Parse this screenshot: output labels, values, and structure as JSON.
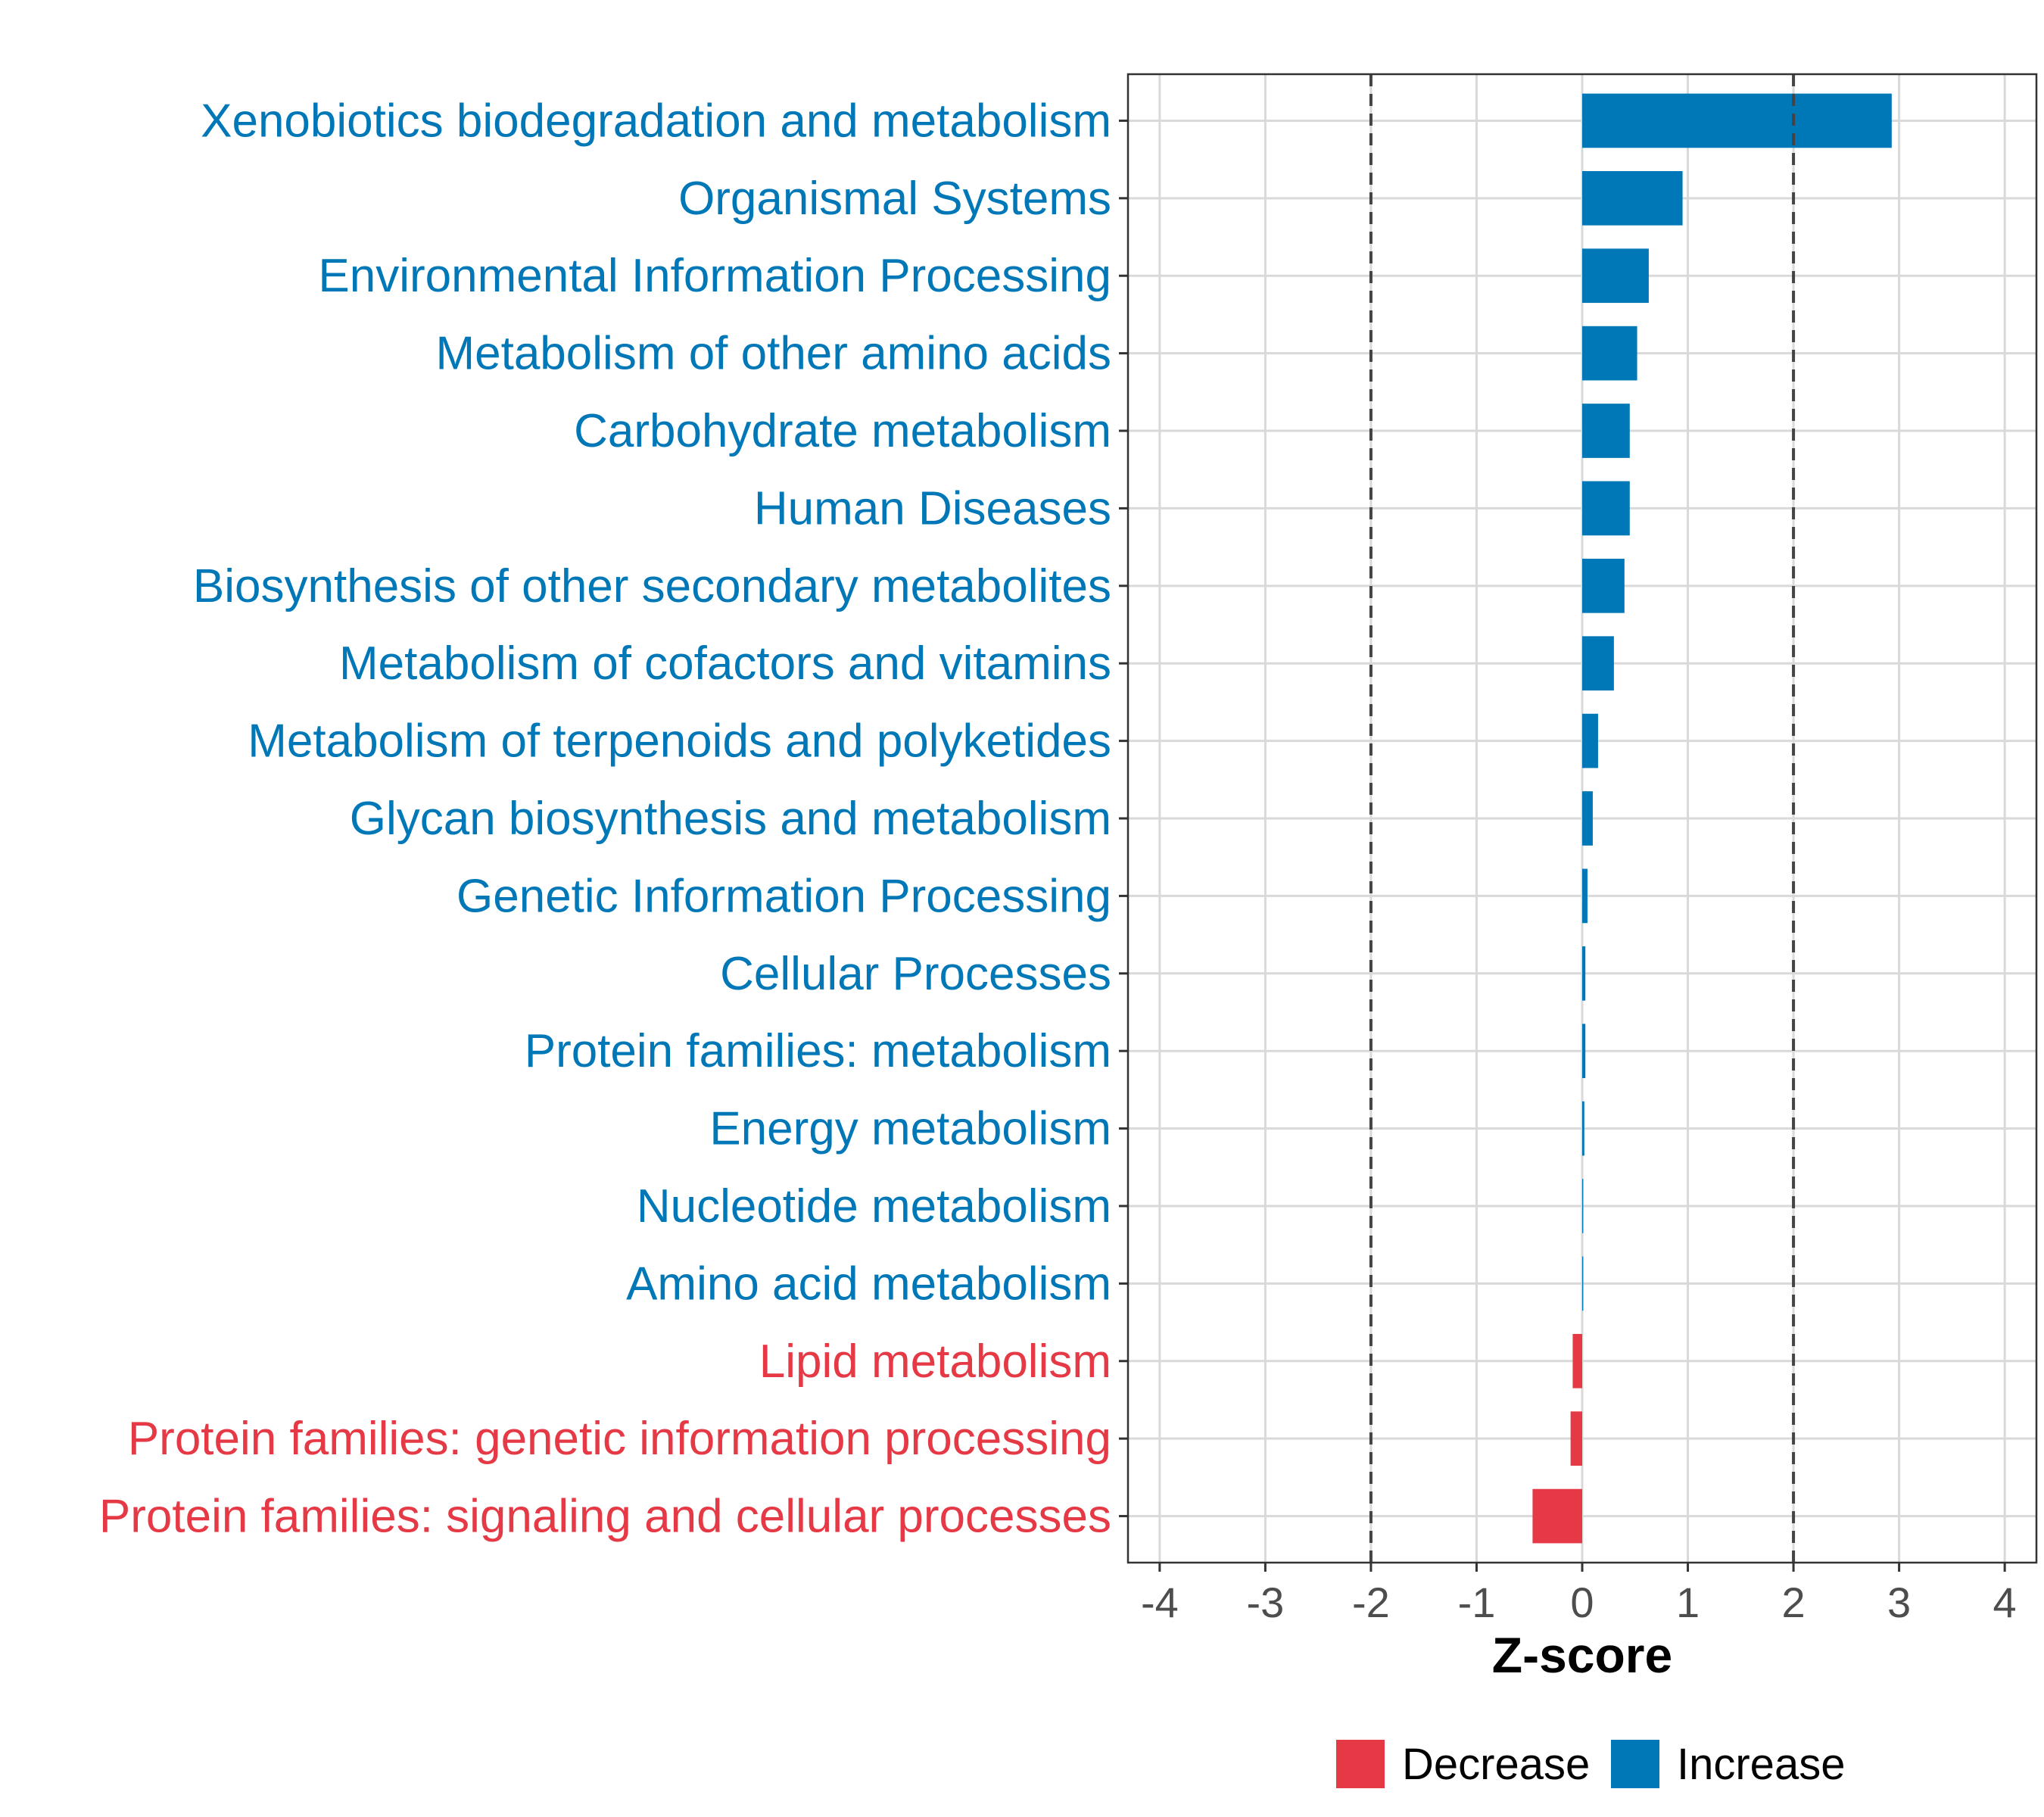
{
  "chart_data": {
    "type": "bar",
    "orientation": "horizontal",
    "categories": [
      "Xenobiotics biodegradation and metabolism",
      "Organismal Systems",
      "Environmental Information Processing",
      "Metabolism of other amino acids",
      "Carbohydrate metabolism",
      "Human Diseases",
      "Biosynthesis of other secondary metabolites",
      "Metabolism of cofactors and vitamins",
      "Metabolism of terpenoids and polyketides",
      "Glycan biosynthesis and metabolism",
      "Genetic Information Processing",
      "Cellular Processes",
      "Protein families: metabolism",
      "Energy metabolism",
      "Nucleotide metabolism",
      "Amino acid metabolism",
      "Lipid metabolism",
      "Protein families: genetic information processing",
      "Protein families: signaling and cellular processes"
    ],
    "values": [
      2.93,
      0.95,
      0.63,
      0.52,
      0.45,
      0.45,
      0.4,
      0.3,
      0.15,
      0.1,
      0.05,
      0.03,
      0.03,
      0.02,
      0.01,
      0.01,
      -0.09,
      -0.11,
      -0.47
    ],
    "groups": [
      "Increase",
      "Increase",
      "Increase",
      "Increase",
      "Increase",
      "Increase",
      "Increase",
      "Increase",
      "Increase",
      "Increase",
      "Increase",
      "Increase",
      "Increase",
      "Increase",
      "Increase",
      "Increase",
      "Decrease",
      "Decrease",
      "Decrease"
    ],
    "xlabel": "Z-score",
    "ylabel": "",
    "xlim": [
      -4.3,
      4.3
    ],
    "xticks": [
      -4,
      -3,
      -2,
      -1,
      0,
      1,
      2,
      3,
      4
    ],
    "xtick_labels": [
      "-4",
      "-3",
      "-2",
      "-1",
      "0",
      "1",
      "2",
      "3",
      "4"
    ],
    "reference_lines": [
      -2,
      2
    ],
    "grid": true,
    "legend": {
      "position": "bottom",
      "entries": [
        {
          "label": "Decrease",
          "color": "#e63946"
        },
        {
          "label": "Increase",
          "color": "#0077b6"
        }
      ]
    },
    "colors": {
      "Increase": "#0077b6",
      "Decrease": "#e63946",
      "grid": "#d9d9d9",
      "reference_line": "#444444"
    }
  }
}
